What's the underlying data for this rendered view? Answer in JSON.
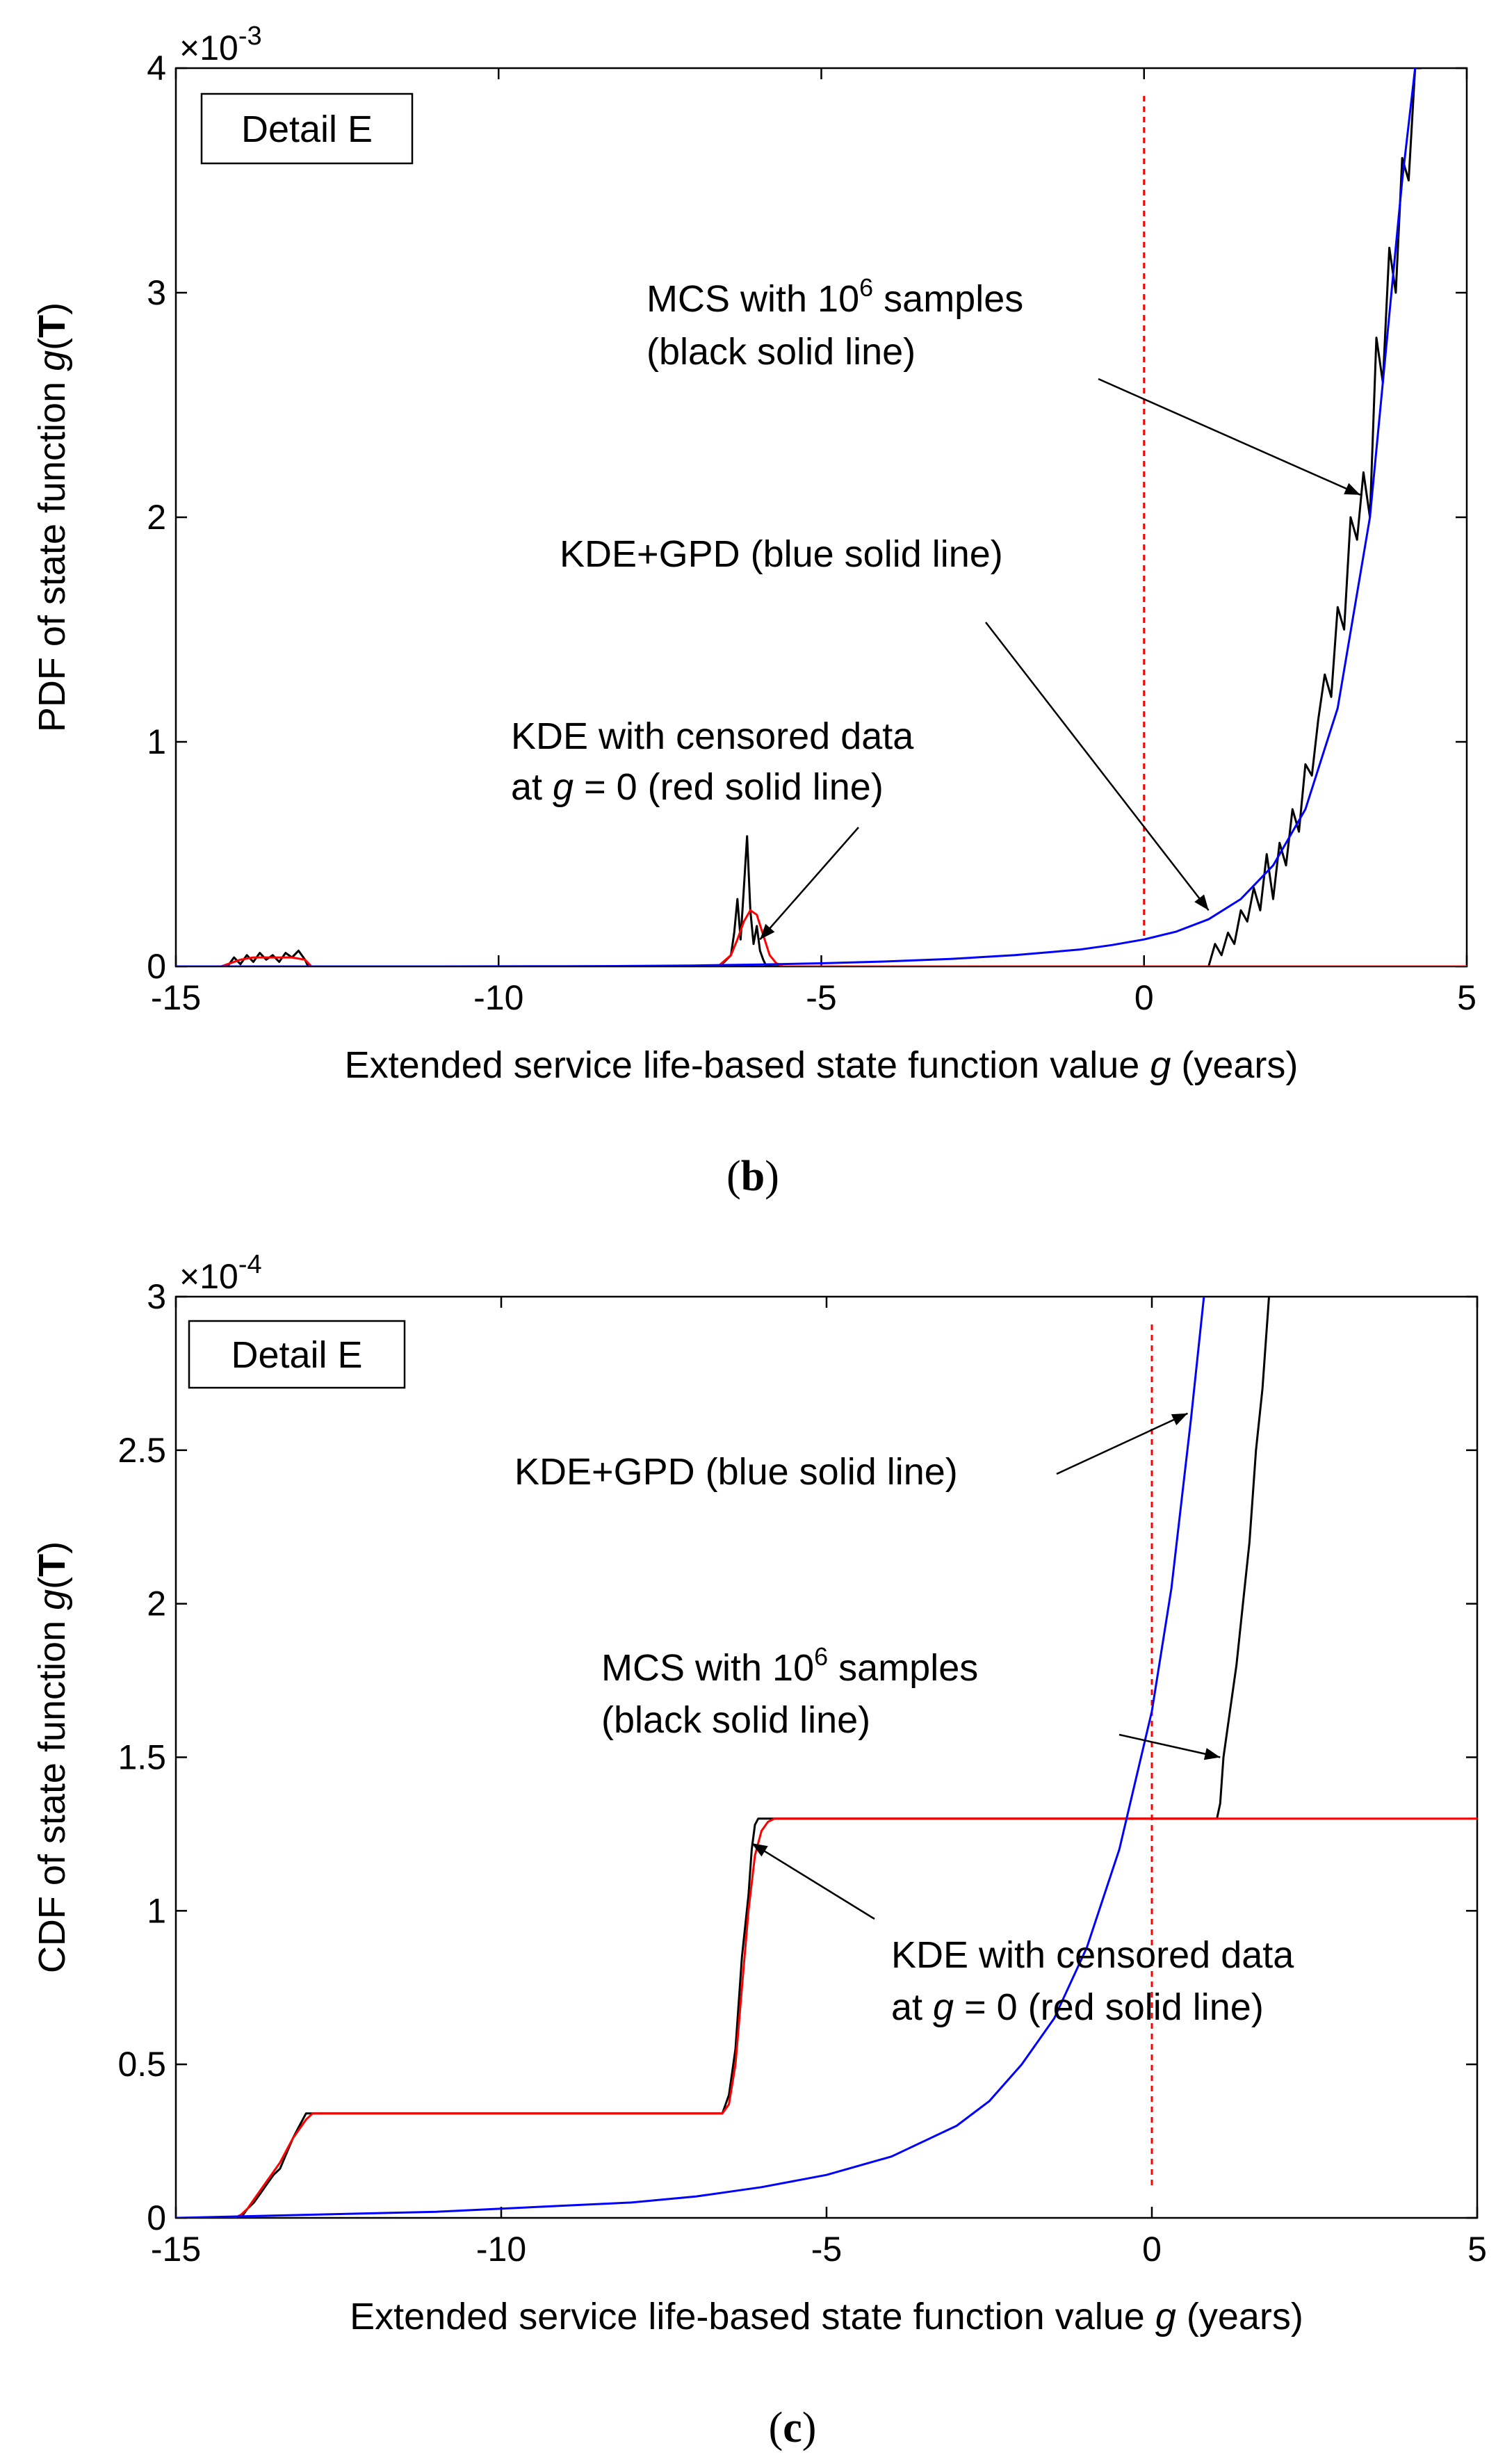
{
  "chart_data": [
    {
      "type": "line",
      "panel_label": "b",
      "detail_label": "Detail E",
      "xlabel": "Extended service life-based state function value g (years)",
      "ylabel": "PDF of state function g(T)",
      "xlim": [
        -15,
        5
      ],
      "ylim": [
        0,
        4
      ],
      "x_ticks": [
        -15,
        -10,
        -5,
        0,
        5
      ],
      "y_ticks": [
        0,
        1,
        2,
        3,
        4
      ],
      "y_multiplier": "×10^-3",
      "grid": false,
      "reference_line": {
        "x": 0,
        "color": "#ff0000",
        "style": "dashed"
      },
      "series": [
        {
          "name": "MCS with 10^6 samples",
          "color": "#000000",
          "x": [
            -15,
            -14.2,
            -14.1,
            -14.0,
            -13.9,
            -13.8,
            -13.7,
            -13.6,
            -13.5,
            -13.4,
            -13.3,
            -13.2,
            -13.1,
            -13.0,
            -12.95,
            -6.6,
            -6.5,
            -6.4,
            -6.35,
            -6.3,
            -6.25,
            -6.2,
            -6.15,
            -6.1,
            -6.05,
            -6.0,
            -5.95,
            -5.9,
            -5.85,
            1.0,
            1.1,
            1.2,
            1.3,
            1.4,
            1.5,
            1.6,
            1.7,
            1.8,
            1.9,
            2.0,
            2.1,
            2.2,
            2.3,
            2.4,
            2.5,
            2.6,
            2.7,
            2.8,
            2.9,
            3.0,
            3.1,
            3.2,
            3.3,
            3.4,
            3.5,
            3.6,
            3.7,
            3.8,
            3.9,
            4.0,
            4.1,
            4.2,
            4.3
          ],
          "y": [
            0,
            0,
            0.04,
            0.01,
            0.05,
            0.02,
            0.06,
            0.03,
            0.05,
            0.02,
            0.06,
            0.04,
            0.07,
            0.03,
            0,
            0,
            0.02,
            0.05,
            0.15,
            0.3,
            0.12,
            0.35,
            0.58,
            0.25,
            0.1,
            0.18,
            0.07,
            0.03,
            0,
            0,
            0.1,
            0.05,
            0.15,
            0.1,
            0.25,
            0.2,
            0.35,
            0.25,
            0.5,
            0.3,
            0.55,
            0.45,
            0.7,
            0.6,
            0.9,
            0.85,
            1.1,
            1.3,
            1.2,
            1.6,
            1.5,
            2.0,
            1.9,
            2.2,
            2.0,
            2.8,
            2.6,
            3.2,
            3.0,
            3.6,
            3.5,
            4.0,
            4.0
          ]
        },
        {
          "name": "KDE+GPD",
          "color": "#0000ff",
          "x": [
            -15,
            -13,
            -11,
            -9,
            -8,
            -7,
            -6,
            -5,
            -4,
            -3,
            -2,
            -1,
            -0.5,
            0,
            0.5,
            1,
            1.5,
            2,
            2.5,
            3,
            3.5,
            4,
            4.2
          ],
          "y": [
            0,
            0,
            0,
            0.001,
            0.002,
            0.004,
            0.008,
            0.014,
            0.022,
            0.033,
            0.05,
            0.075,
            0.095,
            0.12,
            0.155,
            0.21,
            0.3,
            0.45,
            0.7,
            1.15,
            2.0,
            3.5,
            4.0
          ]
        },
        {
          "name": "KDE with censored data at g = 0",
          "color": "#ff0000",
          "x": [
            -15,
            -14.3,
            -14.2,
            -14.0,
            -13.8,
            -13.6,
            -13.4,
            -13.2,
            -13.0,
            -12.9,
            -6.6,
            -6.4,
            -6.3,
            -6.2,
            -6.1,
            -6.0,
            -5.9,
            -5.8,
            -5.7,
            -5.6,
            5
          ],
          "y": [
            0,
            0,
            0.01,
            0.03,
            0.04,
            0.04,
            0.04,
            0.04,
            0.03,
            0,
            0,
            0.05,
            0.12,
            0.2,
            0.25,
            0.23,
            0.14,
            0.05,
            0.015,
            0,
            0
          ]
        }
      ],
      "annotations": [
        {
          "text": "KDE with censored data",
          "text2": "at g = 0 (red solid line)"
        },
        {
          "text": "KDE+GPD (blue solid line)"
        },
        {
          "text": "MCS with 10^6 samples",
          "text2": "(black solid line)"
        }
      ]
    },
    {
      "type": "line",
      "panel_label": "c",
      "detail_label": "Detail E",
      "xlabel": "Extended service life-based state function value g (years)",
      "ylabel": "CDF of state function g(T)",
      "xlim": [
        -15,
        5
      ],
      "ylim": [
        0,
        3
      ],
      "x_ticks": [
        -15,
        -10,
        -5,
        0,
        5
      ],
      "y_ticks": [
        0,
        0.5,
        1,
        1.5,
        2,
        2.5,
        3
      ],
      "y_multiplier": "×10^-4",
      "grid": false,
      "reference_line": {
        "x": 0,
        "color": "#ff0000",
        "style": "dashed"
      },
      "series": [
        {
          "name": "MCS with 10^6 samples",
          "color": "#000000",
          "x": [
            -15,
            -14.0,
            -13.9,
            -13.8,
            -13.7,
            -13.6,
            -13.5,
            -13.4,
            -13.3,
            -13.2,
            -13.1,
            -13.0,
            -6.6,
            -6.5,
            -6.4,
            -6.3,
            -6.2,
            -6.15,
            -6.1,
            -6.05,
            -6.0,
            -5.9,
            1.0,
            1.05,
            1.1,
            1.2,
            1.3,
            1.4,
            1.5,
            1.6,
            1.7,
            1.8
          ],
          "y": [
            0,
            0,
            0.03,
            0.05,
            0.08,
            0.11,
            0.14,
            0.16,
            0.21,
            0.26,
            0.3,
            0.34,
            0.34,
            0.4,
            0.55,
            0.85,
            1.05,
            1.2,
            1.28,
            1.3,
            1.3,
            1.3,
            1.3,
            1.35,
            1.5,
            1.65,
            1.8,
            2.0,
            2.2,
            2.5,
            2.7,
            3.0
          ]
        },
        {
          "name": "KDE+GPD",
          "color": "#0000ff",
          "x": [
            -15,
            -13,
            -11,
            -9,
            -8,
            -7,
            -6,
            -5,
            -4,
            -3,
            -2.5,
            -2,
            -1.5,
            -1,
            -0.5,
            0,
            0.3,
            0.6,
            0.8
          ],
          "y": [
            0,
            0.01,
            0.02,
            0.04,
            0.05,
            0.07,
            0.1,
            0.14,
            0.2,
            0.3,
            0.38,
            0.5,
            0.65,
            0.88,
            1.2,
            1.65,
            2.05,
            2.6,
            3.0
          ]
        },
        {
          "name": "KDE with censored data at g = 0",
          "color": "#ff0000",
          "x": [
            -15,
            -14.1,
            -14.0,
            -13.9,
            -13.8,
            -13.6,
            -13.4,
            -13.2,
            -13.0,
            -12.9,
            -6.6,
            -6.5,
            -6.4,
            -6.3,
            -6.2,
            -6.1,
            -6.0,
            -5.9,
            -5.8,
            5
          ],
          "y": [
            0,
            0,
            0.01,
            0.03,
            0.06,
            0.12,
            0.18,
            0.26,
            0.32,
            0.34,
            0.34,
            0.37,
            0.5,
            0.75,
            1.0,
            1.18,
            1.26,
            1.29,
            1.3,
            1.3
          ]
        }
      ],
      "annotations": [
        {
          "text": "KDE+GPD (blue solid line)"
        },
        {
          "text": "MCS with 10^6 samples",
          "text2": "(black solid line)"
        },
        {
          "text": "KDE with censored data",
          "text2": "at g = 0 (red solid line)"
        }
      ]
    }
  ],
  "captions": [
    "(b)",
    "(c)"
  ]
}
